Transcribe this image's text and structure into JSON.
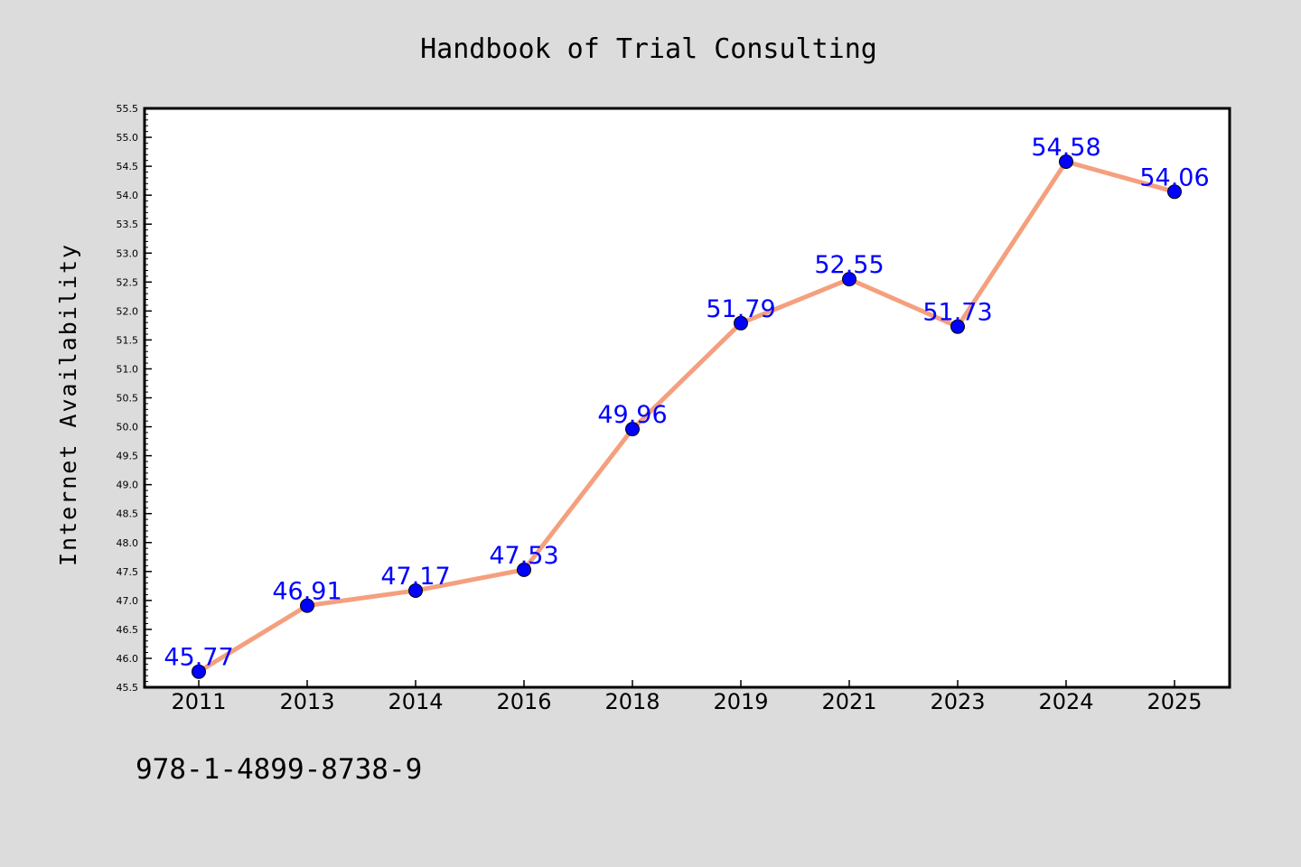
{
  "chart_data": {
    "type": "line",
    "title": "Handbook of Trial Consulting",
    "xlabel": "",
    "ylabel": "Internet Availability",
    "categories": [
      "2011",
      "2013",
      "2014",
      "2016",
      "2018",
      "2019",
      "2021",
      "2023",
      "2024",
      "2025"
    ],
    "series": [
      {
        "values": [
          45.77,
          46.91,
          47.17,
          47.53,
          49.96,
          51.79,
          52.55,
          51.73,
          54.58,
          54.06
        ],
        "labels": [
          "45.77",
          "46.91",
          "47.17",
          "47.53",
          "49.96",
          "51.79",
          "52.55",
          "51.73",
          "54.58",
          "54.06"
        ],
        "line_color": "#f4a07e",
        "marker_color": "#0000ff"
      }
    ],
    "ylim": [
      45.5,
      55.5
    ],
    "yticks": [
      "45.5",
      "46.0",
      "46.5",
      "47.0",
      "47.5",
      "48.0",
      "48.5",
      "49.0",
      "49.5",
      "50.0",
      "50.5",
      "51.0",
      "51.5",
      "52.0",
      "52.5",
      "53.0",
      "53.5",
      "54.0",
      "54.5",
      "55.0",
      "55.5"
    ],
    "grid": false,
    "legend": "none"
  },
  "footer": {
    "isbn": "978-1-4899-8738-9"
  },
  "colors": {
    "background": "#dcdcdc",
    "plot_background": "#ffffff",
    "label_color": "#0000ff"
  }
}
